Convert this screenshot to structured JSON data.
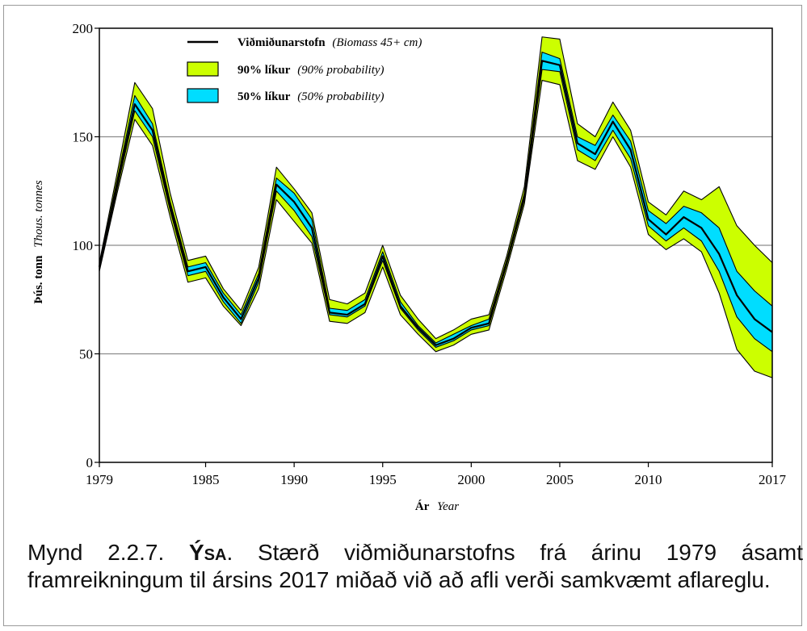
{
  "chart_data": {
    "type": "area",
    "ylabel_is": "Þús. tonn",
    "ylabel_en": "Thous. tonnes",
    "xlabel_is": "Ár",
    "xlabel_en": "Year",
    "ylim": [
      0,
      200
    ],
    "xlim": [
      1979,
      2017
    ],
    "yticks": [
      0,
      50,
      100,
      150,
      200
    ],
    "xticks": [
      1979,
      1985,
      1990,
      1995,
      2000,
      2005,
      2010,
      2017
    ],
    "grid": "horizontal",
    "legend_position": "top-left",
    "legend": [
      {
        "bold": "Viðmiðunarstofn",
        "italic": "(Biomass 45+ cm)",
        "kind": "line",
        "color": "#000000"
      },
      {
        "bold": "90% líkur",
        "italic": "(90% probability)",
        "kind": "box",
        "color": "#ccff00"
      },
      {
        "bold": "50% líkur",
        "italic": "(50% probability)",
        "kind": "box",
        "color": "#00ddff"
      }
    ],
    "x": [
      1979,
      1980,
      1981,
      1982,
      1983,
      1984,
      1985,
      1986,
      1987,
      1988,
      1989,
      1990,
      1991,
      1992,
      1993,
      1994,
      1995,
      1996,
      1997,
      1998,
      1999,
      2000,
      2001,
      2002,
      2003,
      2004,
      2005,
      2006,
      2007,
      2008,
      2009,
      2010,
      2011,
      2012,
      2013,
      2014,
      2015,
      2016,
      2017
    ],
    "series": [
      {
        "name": "Viðmiðunarstofn",
        "values": [
          90,
          128,
          165,
          153,
          118,
          88,
          90,
          76,
          66,
          85,
          128,
          120,
          108,
          69,
          68,
          73,
          95,
          72,
          62,
          54,
          57,
          62,
          64,
          92,
          122,
          185,
          183,
          147,
          142,
          157,
          144,
          112,
          105,
          113,
          108,
          96,
          77,
          66,
          60
        ]
      },
      {
        "name": "50% líkur",
        "lower": [
          89,
          126,
          162,
          150,
          116,
          86,
          88,
          74,
          64,
          83,
          125,
          116,
          104,
          68,
          67,
          72,
          93,
          71,
          61,
          53,
          56,
          61,
          63,
          91,
          121,
          181,
          180,
          144,
          139,
          153,
          140,
          109,
          102,
          108,
          102,
          88,
          67,
          57,
          51
        ],
        "upper": [
          91,
          130,
          169,
          156,
          120,
          90,
          92,
          78,
          68,
          87,
          131,
          124,
          112,
          71,
          70,
          75,
          97,
          74,
          63,
          55,
          59,
          63,
          66,
          93,
          124,
          189,
          186,
          150,
          146,
          160,
          148,
          116,
          110,
          118,
          115,
          108,
          88,
          79,
          72
        ]
      },
      {
        "name": "90% líkur",
        "lower": [
          88,
          124,
          158,
          146,
          113,
          83,
          85,
          72,
          63,
          80,
          121,
          111,
          101,
          65,
          64,
          69,
          90,
          68,
          59,
          51,
          54,
          59,
          61,
          89,
          119,
          176,
          174,
          139,
          135,
          150,
          136,
          105,
          98,
          103,
          97,
          78,
          52,
          42,
          39
        ],
        "upper": [
          92,
          133,
          175,
          163,
          124,
          93,
          95,
          80,
          70,
          90,
          136,
          126,
          115,
          75,
          73,
          78,
          100,
          77,
          66,
          57,
          61,
          66,
          68,
          95,
          127,
          196,
          195,
          156,
          150,
          166,
          153,
          120,
          114,
          125,
          121,
          127,
          109,
          100,
          92
        ]
      }
    ]
  },
  "caption": {
    "label": "Mynd 2.2.7.",
    "species": "Ýsa",
    "text": ". Stærð viðmiðunarstofns frá árinu 1979 ásamt framreikningum til ársins 2017 miðað við að afli verði samkvæmt aflareglu."
  },
  "colors": {
    "band90": "#ccff00",
    "band50": "#00ddff",
    "line": "#000000",
    "grid": "#8c8c8c"
  }
}
